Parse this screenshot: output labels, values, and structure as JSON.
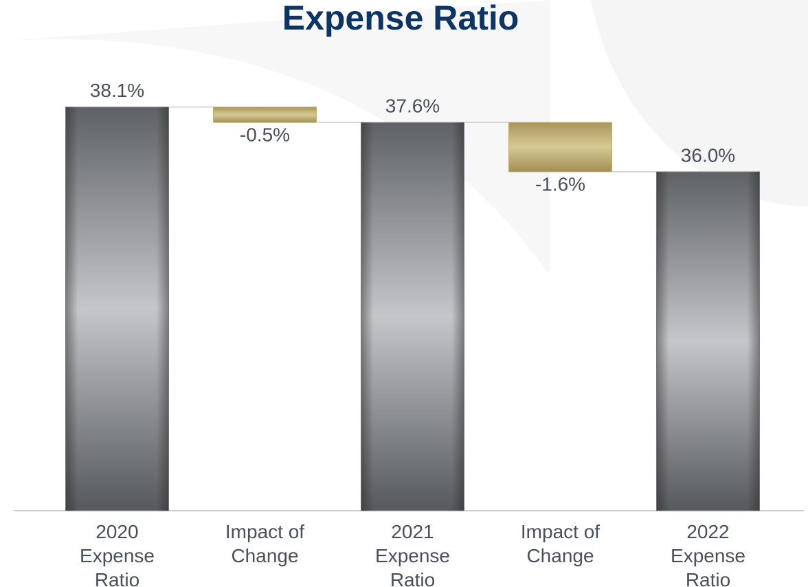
{
  "chart_data": {
    "type": "waterfall",
    "title": "Expense Ratio",
    "categories": [
      "2020 Expense Ratio",
      "Impact of Change",
      "2021 Expense Ratio",
      "Impact of Change",
      "2022 Expense Ratio"
    ],
    "values": [
      38.1,
      -0.5,
      37.6,
      -1.6,
      36.0
    ],
    "value_labels": [
      "38.1%",
      "-0.5%",
      "37.6%",
      "-1.6%",
      "36.0%"
    ],
    "measure": [
      "absolute",
      "relative",
      "absolute",
      "relative",
      "absolute"
    ],
    "colors": {
      "absolute": "#8a8d92",
      "relative": "#bfae72"
    },
    "ylim": [
      25,
      39.5
    ]
  }
}
